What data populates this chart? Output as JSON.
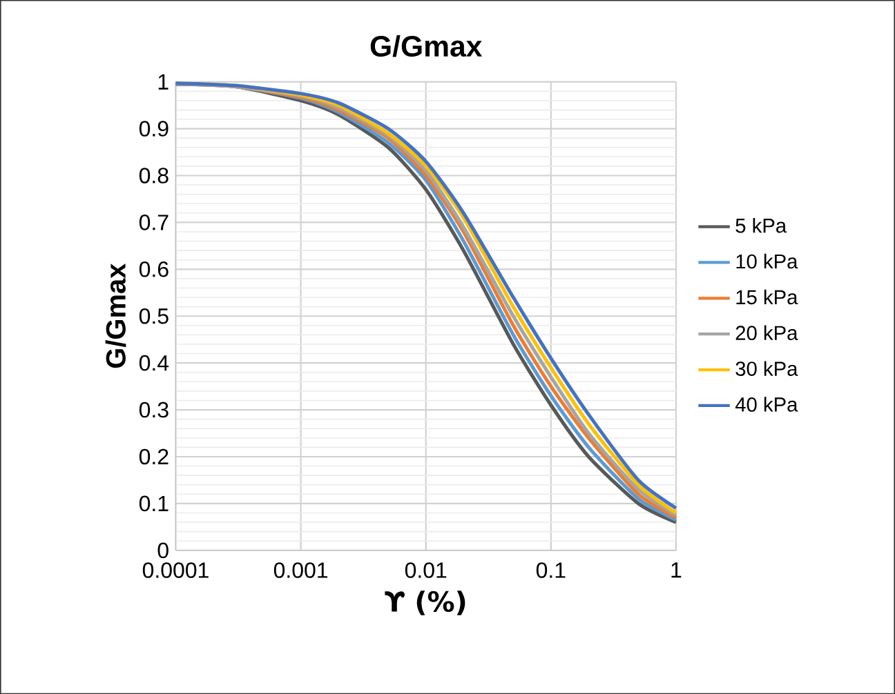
{
  "chart_data": {
    "type": "line",
    "title": "G/Gmax",
    "xlabel": "ϒ (%)",
    "ylabel": "G/Gmax",
    "log": "x",
    "grid": true,
    "legend": "right",
    "marker": "none",
    "line_style": "solid",
    "xlim": [
      0.0001,
      1
    ],
    "ylim": [
      0,
      1
    ],
    "xticks": [
      0.0001,
      0.001,
      0.01,
      0.1,
      1
    ],
    "yticks": [
      0,
      0.1,
      0.2,
      0.3,
      0.4,
      0.5,
      0.6,
      0.7,
      0.8,
      0.9,
      1
    ],
    "x": [
      0.0001,
      0.0003,
      0.001,
      0.002,
      0.005,
      0.01,
      0.02,
      0.05,
      0.1,
      0.2,
      0.5,
      1
    ],
    "series": [
      {
        "name": "5 kPa",
        "color": "#595959",
        "values": [
          0.995,
          0.99,
          0.96,
          0.93,
          0.86,
          0.77,
          0.64,
          0.44,
          0.31,
          0.2,
          0.1,
          0.06
        ]
      },
      {
        "name": "10 kPa",
        "color": "#5b9bd5",
        "values": [
          0.995,
          0.99,
          0.965,
          0.935,
          0.87,
          0.79,
          0.66,
          0.46,
          0.33,
          0.22,
          0.11,
          0.065
        ]
      },
      {
        "name": "15 kPa",
        "color": "#ed7d31",
        "values": [
          0.996,
          0.99,
          0.967,
          0.94,
          0.88,
          0.8,
          0.68,
          0.48,
          0.35,
          0.24,
          0.12,
          0.07
        ]
      },
      {
        "name": "20 kPa",
        "color": "#a5a5a5",
        "values": [
          0.996,
          0.99,
          0.97,
          0.945,
          0.885,
          0.81,
          0.69,
          0.5,
          0.37,
          0.25,
          0.13,
          0.075
        ]
      },
      {
        "name": "30 kPa",
        "color": "#ffc000",
        "values": [
          0.997,
          0.992,
          0.972,
          0.95,
          0.89,
          0.82,
          0.71,
          0.52,
          0.39,
          0.27,
          0.14,
          0.08
        ]
      },
      {
        "name": "40 kPa",
        "color": "#4472c4",
        "values": [
          0.997,
          0.992,
          0.975,
          0.955,
          0.9,
          0.83,
          0.72,
          0.54,
          0.41,
          0.29,
          0.15,
          0.09
        ]
      }
    ]
  }
}
